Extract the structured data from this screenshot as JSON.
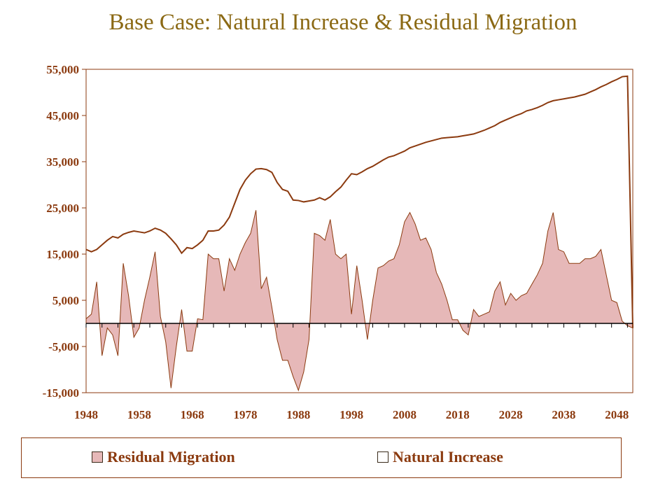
{
  "title": "Base Case: Natural Increase & Residual Migration",
  "chart_data": {
    "type": "area",
    "title": "Base Case: Natural Increase & Residual Migration",
    "xlabel": "",
    "ylabel": "",
    "xlim": [
      1948,
      2051
    ],
    "ylim": [
      -15000,
      55000
    ],
    "y_ticks": [
      -15000,
      -5000,
      5000,
      15000,
      25000,
      35000,
      45000,
      55000
    ],
    "y_tick_labels": [
      "-15,000",
      "-5,000",
      "5,000",
      "15,000",
      "25,000",
      "35,000",
      "45,000",
      "55,000"
    ],
    "x_tick_labels": [
      "1948",
      "1958",
      "1968",
      "1978",
      "1988",
      "1998",
      "2008",
      "2018",
      "2028",
      "2038",
      "2048"
    ],
    "x": [
      1948,
      1949,
      1950,
      1951,
      1952,
      1953,
      1954,
      1955,
      1956,
      1957,
      1958,
      1959,
      1960,
      1961,
      1962,
      1963,
      1964,
      1965,
      1966,
      1967,
      1968,
      1969,
      1970,
      1971,
      1972,
      1973,
      1974,
      1975,
      1976,
      1977,
      1978,
      1979,
      1980,
      1981,
      1982,
      1983,
      1984,
      1985,
      1986,
      1987,
      1988,
      1989,
      1990,
      1991,
      1992,
      1993,
      1994,
      1995,
      1996,
      1997,
      1998,
      1999,
      2000,
      2001,
      2002,
      2003,
      2004,
      2005,
      2006,
      2007,
      2008,
      2009,
      2010,
      2011,
      2012,
      2013,
      2014,
      2015,
      2016,
      2017,
      2018,
      2019,
      2020,
      2021,
      2022,
      2023,
      2024,
      2025,
      2026,
      2027,
      2028,
      2029,
      2030,
      2031,
      2032,
      2033,
      2034,
      2035,
      2036,
      2037,
      2038,
      2039,
      2040,
      2041,
      2042,
      2043,
      2044,
      2045,
      2046,
      2047,
      2048,
      2049,
      2050,
      2051
    ],
    "series": [
      {
        "name": "Residual Migration",
        "style": "area",
        "color": "#e6b8b8",
        "values": [
          1000,
          2000,
          9000,
          -7000,
          -1000,
          -2500,
          -7000,
          13000,
          6000,
          -3000,
          -1000,
          5000,
          10000,
          15500,
          1500,
          -4000,
          -14000,
          -5000,
          3000,
          -6000,
          -6000,
          1000,
          800,
          15000,
          14000,
          14000,
          7000,
          14000,
          11500,
          15000,
          17500,
          19500,
          24500,
          7500,
          10000,
          3500,
          -3500,
          -8000,
          -8000,
          -11500,
          -14500,
          -10500,
          -3500,
          19500,
          19000,
          18000,
          22500,
          15000,
          14000,
          15000,
          2000,
          12500,
          5000,
          -3500,
          5000,
          12000,
          12500,
          13500,
          14000,
          17000,
          22000,
          24000,
          21500,
          18000,
          18500,
          16000,
          11000,
          8500,
          5000,
          800,
          800,
          -1500,
          -2500,
          3000,
          1500,
          2000,
          2500,
          7000,
          9000,
          4000,
          6500,
          5000,
          6000,
          6500,
          8500,
          10500,
          13000,
          20000,
          24000,
          16000,
          15500,
          13000,
          13000,
          13000,
          14000,
          14000,
          14500,
          16000,
          10500,
          5000,
          4500,
          500,
          -500,
          -1000
        ]
      },
      {
        "name": "Natural Increase",
        "style": "line",
        "color": "#8b3a0f",
        "values": [
          16000,
          15500,
          16000,
          17000,
          18000,
          18800,
          18500,
          19300,
          19700,
          20000,
          19800,
          19600,
          20000,
          20600,
          20200,
          19500,
          18300,
          17000,
          15200,
          16400,
          16200,
          17000,
          18000,
          20000,
          20000,
          20200,
          21300,
          23000,
          26000,
          29000,
          31000,
          32400,
          33400,
          33500,
          33300,
          32700,
          30500,
          29000,
          28600,
          26700,
          26600,
          26300,
          26500,
          26700,
          27200,
          26700,
          27400,
          28500,
          29500,
          31000,
          32400,
          32200,
          32800,
          33500,
          34000,
          34700,
          35400,
          36000,
          36300,
          36800,
          37300,
          38000,
          38400,
          38800,
          39200,
          39500,
          39800,
          40100,
          40200,
          40300,
          40400,
          40600,
          40800,
          41000,
          41400,
          41800,
          42300,
          42800,
          43500,
          44000,
          44500,
          45000,
          45400,
          46000,
          46300,
          46700,
          47200,
          47800,
          48200,
          48400,
          48600,
          48800,
          49000,
          49300,
          49600,
          50100,
          50600,
          51200,
          51700,
          52300,
          52800,
          53400,
          53500,
          -1000
        ]
      }
    ],
    "grid": false,
    "legend_position": "bottom"
  },
  "legend": {
    "items": [
      {
        "label": "Residual Migration",
        "swatch_color": "#e6b8b8"
      },
      {
        "label": "Natural Increase",
        "swatch_color": "#ffffff"
      }
    ]
  },
  "colors": {
    "title": "#8b6914",
    "axis": "#8b3a0f",
    "area_fill": "#e6b8b8",
    "area_stroke": "#8b3a0f",
    "line": "#8b3a0f"
  }
}
